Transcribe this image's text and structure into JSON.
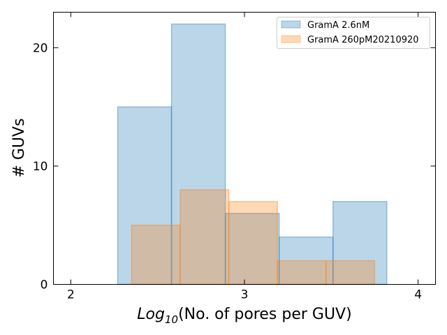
{
  "chart_data": {
    "type": "bar",
    "title": "",
    "xlabel_prefix": "Log",
    "xlabel_subscript": "10",
    "xlabel_suffix": "(No. of pores per GUV)",
    "ylabel": "# GUVs",
    "xlim": [
      1.9,
      4.1
    ],
    "ylim": [
      0,
      23
    ],
    "xticks": [
      2,
      3,
      4
    ],
    "yticks": [
      0,
      10,
      20
    ],
    "legend_position": "top-right",
    "series": [
      {
        "name": "GramA 2.6nM",
        "fill": "#1f77b4",
        "edge": "#1f77b4",
        "bins": [
          {
            "start": 2.27,
            "end": 2.58,
            "count": 15
          },
          {
            "start": 2.58,
            "end": 2.89,
            "count": 22
          },
          {
            "start": 2.89,
            "end": 3.2,
            "count": 6
          },
          {
            "start": 3.2,
            "end": 3.51,
            "count": 4
          },
          {
            "start": 3.51,
            "end": 3.82,
            "count": 7
          }
        ]
      },
      {
        "name": "GramA 260pM20210920",
        "fill": "#ff7f0e",
        "edge": "#ff7f0e",
        "bins": [
          {
            "start": 2.35,
            "end": 2.63,
            "count": 5
          },
          {
            "start": 2.63,
            "end": 2.91,
            "count": 8
          },
          {
            "start": 2.91,
            "end": 3.19,
            "count": 7
          },
          {
            "start": 3.19,
            "end": 3.47,
            "count": 2
          },
          {
            "start": 3.47,
            "end": 3.75,
            "count": 2
          }
        ]
      }
    ]
  }
}
